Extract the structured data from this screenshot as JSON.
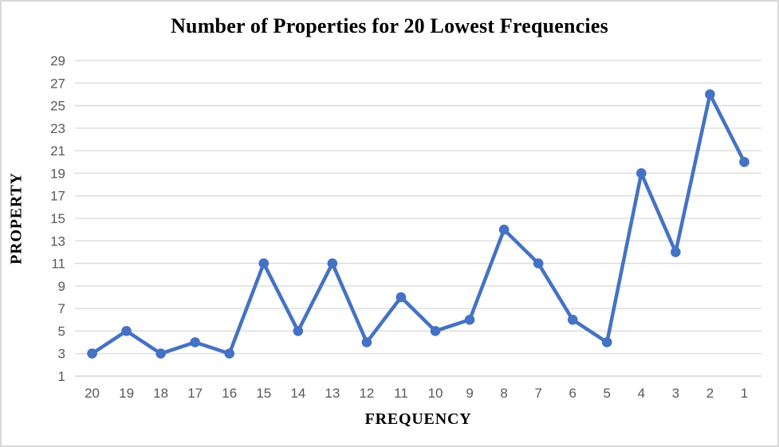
{
  "chart_data": {
    "type": "line",
    "title": "Number of Properties for 20 Lowest Frequencies",
    "xlabel": "FREQUENCY",
    "ylabel": "PROPERTY",
    "categories": [
      "20",
      "19",
      "18",
      "17",
      "16",
      "15",
      "14",
      "13",
      "12",
      "11",
      "10",
      "9",
      "8",
      "7",
      "6",
      "5",
      "4",
      "3",
      "2",
      "1"
    ],
    "values": [
      3,
      5,
      3,
      4,
      3,
      11,
      5,
      11,
      4,
      8,
      5,
      6,
      14,
      11,
      6,
      4,
      19,
      12,
      26,
      20
    ],
    "y_ticks": [
      1,
      3,
      5,
      7,
      9,
      11,
      13,
      15,
      17,
      19,
      21,
      23,
      25,
      27,
      29
    ],
    "ylim": [
      1,
      29
    ],
    "grid": "horizontal",
    "legend_position": "none",
    "line_color": "#4472C4",
    "marker": "circle",
    "gridline_color": "#d9d9d9",
    "axis_line_color": "#c9c9c9",
    "tick_label_color": "#595959"
  }
}
